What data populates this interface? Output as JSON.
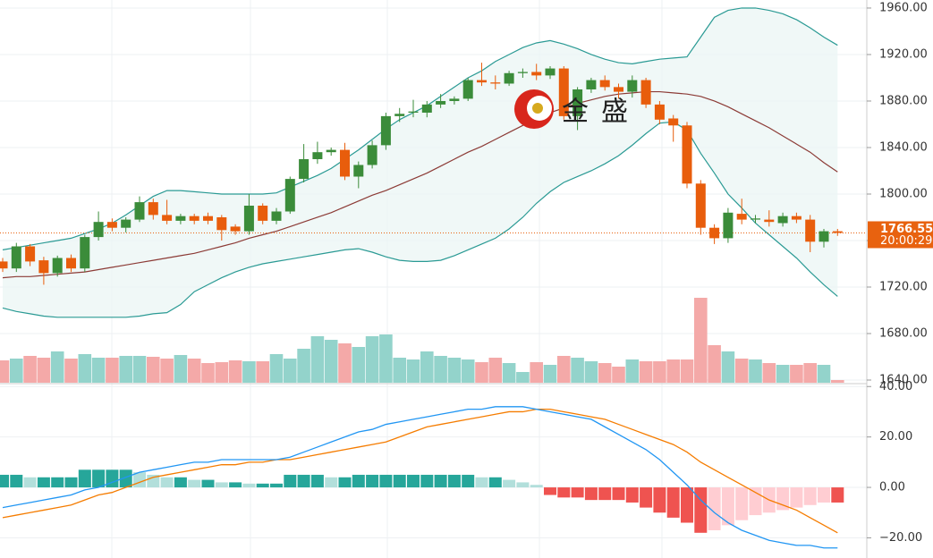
{
  "watermark": [
    "金",
    "盛"
  ],
  "chart_data": [
    {
      "type": "candlestick",
      "ylim": [
        1637.7,
        1966.9
      ],
      "yticks": [
        {
          "value": 1960,
          "label": "1960.00"
        },
        {
          "value": 1920,
          "label": "1920.00"
        },
        {
          "value": 1880,
          "label": "1880.00"
        },
        {
          "value": 1840,
          "label": "1840.00"
        },
        {
          "value": 1800,
          "label": "1800.00"
        },
        {
          "value": 1760,
          "label": "1760.00"
        },
        {
          "value": 1720,
          "label": "1720.00"
        },
        {
          "value": 1680,
          "label": "1680.00"
        },
        {
          "value": 1640,
          "label": "1640.00"
        }
      ],
      "colors": {
        "up": "#3b8c3a",
        "down": "#e85d0c",
        "volume_up": "#93d3cb",
        "volume_down": "#f4a9a8",
        "band": "#2a9a94",
        "middle": "#8c3b36",
        "last": "#e8620f"
      },
      "open": [
        1742,
        1736,
        1755,
        1743,
        1732,
        1745,
        1736,
        1763,
        1776,
        1771,
        1778,
        1793,
        1782,
        1777,
        1781,
        1781,
        1780,
        1772,
        1768,
        1790,
        1777,
        1785,
        1813,
        1830,
        1836,
        1838,
        1815,
        1825,
        1842,
        1867,
        1870,
        1870,
        1877,
        1880,
        1882,
        1898,
        1896,
        1895,
        1904,
        1905,
        1902,
        1908,
        1867,
        1890,
        1898,
        1892,
        1888,
        1898,
        1877,
        1865,
        1859,
        1809,
        1771,
        1762,
        1783,
        1778,
        1778,
        1775,
        1781,
        1778,
        1759,
        1768
      ],
      "high": [
        1745,
        1758,
        1757,
        1746,
        1747,
        1748,
        1765,
        1785,
        1779,
        1780,
        1798,
        1796,
        1795,
        1783,
        1783,
        1784,
        1782,
        1774,
        1800,
        1792,
        1788,
        1815,
        1843,
        1845,
        1840,
        1844,
        1828,
        1846,
        1870,
        1874,
        1881,
        1880,
        1886,
        1884,
        1900,
        1913,
        1902,
        1906,
        1908,
        1912,
        1910,
        1910,
        1892,
        1900,
        1902,
        1895,
        1902,
        1900,
        1880,
        1868,
        1862,
        1812,
        1774,
        1788,
        1796,
        1782,
        1786,
        1784,
        1784,
        1782,
        1770,
        1770
      ],
      "low": [
        1733,
        1733,
        1738,
        1722,
        1729,
        1733,
        1733,
        1760,
        1768,
        1767,
        1776,
        1778,
        1774,
        1774,
        1774,
        1774,
        1760,
        1765,
        1765,
        1774,
        1774,
        1783,
        1810,
        1826,
        1833,
        1812,
        1805,
        1822,
        1838,
        1862,
        1866,
        1866,
        1874,
        1877,
        1880,
        1893,
        1890,
        1893,
        1900,
        1898,
        1899,
        1864,
        1855,
        1887,
        1889,
        1882,
        1883,
        1874,
        1860,
        1845,
        1805,
        1765,
        1757,
        1758,
        1774,
        1775,
        1772,
        1772,
        1775,
        1750,
        1754,
        1764
      ],
      "close": [
        1736,
        1755,
        1742,
        1732,
        1745,
        1736,
        1763,
        1776,
        1771,
        1778,
        1793,
        1782,
        1777,
        1781,
        1777,
        1777,
        1769,
        1768,
        1790,
        1777,
        1785,
        1813,
        1830,
        1836,
        1838,
        1815,
        1825,
        1842,
        1867,
        1869,
        1871,
        1877,
        1880,
        1882,
        1898,
        1896,
        1895,
        1904,
        1905,
        1902,
        1908,
        1867,
        1890,
        1898,
        1892,
        1888,
        1898,
        1877,
        1864,
        1859,
        1809,
        1771,
        1762,
        1784,
        1778,
        1779,
        1776,
        1781,
        1778,
        1759,
        1768,
        1766.55
      ],
      "volume": [
        25,
        27,
        30,
        28,
        35,
        27,
        32,
        28,
        28,
        30,
        30,
        29,
        27,
        31,
        27,
        22,
        23,
        25,
        24,
        24,
        32,
        27,
        38,
        52,
        48,
        44,
        40,
        52,
        54,
        28,
        26,
        35,
        30,
        28,
        26,
        23,
        28,
        22,
        12,
        23,
        20,
        30,
        28,
        24,
        22,
        18,
        26,
        24,
        24,
        26,
        26,
        95,
        42,
        35,
        27,
        26,
        22,
        20,
        20,
        22,
        20,
        3
      ],
      "bollinger": {
        "upper": [
          1752,
          1754,
          1756,
          1758,
          1760,
          1762,
          1766,
          1770,
          1775,
          1782,
          1790,
          1798,
          1803,
          1803,
          1802,
          1801,
          1800,
          1800,
          1800,
          1800,
          1801,
          1806,
          1811,
          1816,
          1822,
          1830,
          1838,
          1847,
          1856,
          1864,
          1870,
          1876,
          1884,
          1892,
          1900,
          1906,
          1914,
          1920,
          1926,
          1930,
          1932,
          1929,
          1925,
          1920,
          1916,
          1913,
          1912,
          1914,
          1916,
          1917,
          1918,
          1935,
          1952,
          1958,
          1960,
          1960,
          1958,
          1955,
          1950,
          1943,
          1935,
          1928
        ],
        "middle": [
          1728,
          1729,
          1729,
          1730,
          1731,
          1732,
          1733,
          1735,
          1737,
          1739,
          1741,
          1743,
          1745,
          1747,
          1749,
          1752,
          1755,
          1758,
          1762,
          1765,
          1768,
          1772,
          1776,
          1780,
          1784,
          1789,
          1794,
          1799,
          1803,
          1808,
          1813,
          1818,
          1824,
          1830,
          1836,
          1841,
          1847,
          1853,
          1859,
          1865,
          1870,
          1874,
          1878,
          1881,
          1884,
          1886,
          1887,
          1888,
          1888,
          1887,
          1886,
          1884,
          1880,
          1875,
          1869,
          1863,
          1857,
          1850,
          1843,
          1836,
          1827,
          1819
        ],
        "lower": [
          1702,
          1699,
          1697,
          1695,
          1694,
          1694,
          1694,
          1694,
          1694,
          1694,
          1695,
          1697,
          1698,
          1705,
          1716,
          1722,
          1728,
          1733,
          1737,
          1740,
          1742,
          1744,
          1746,
          1748,
          1750,
          1752,
          1753,
          1750,
          1746,
          1743,
          1742,
          1742,
          1743,
          1747,
          1752,
          1757,
          1762,
          1770,
          1780,
          1792,
          1802,
          1810,
          1815,
          1820,
          1826,
          1833,
          1842,
          1852,
          1861,
          1862,
          1855,
          1835,
          1818,
          1800,
          1788,
          1775,
          1765,
          1755,
          1745,
          1733,
          1722,
          1712
        ]
      },
      "last_price": 1766.55,
      "countdown": "20:00:29"
    },
    {
      "type": "macd",
      "ylim": [
        -28,
        40.8
      ],
      "yticks": [
        {
          "value": 40,
          "label": "40.00"
        },
        {
          "value": 20,
          "label": "20.00"
        },
        {
          "value": 0,
          "label": "0.00"
        },
        {
          "value": -20,
          "label": "−20.00"
        }
      ],
      "colors": {
        "dif": "#2196f3",
        "dea": "#f57c00",
        "rise_up": "#26a69a",
        "fall_up": "#b2dfdb",
        "fall_down": "#ef5350",
        "rise_down": "#ffcdd2"
      },
      "dif": [
        -8,
        -7,
        -6,
        -5,
        -4,
        -3,
        -1,
        0,
        2,
        4,
        6,
        7,
        8,
        9,
        10,
        10,
        11,
        11,
        11,
        11,
        11,
        12,
        14,
        16,
        18,
        20,
        22,
        23,
        25,
        26,
        27,
        28,
        29,
        30,
        31,
        31,
        32,
        32,
        32,
        31,
        30,
        29,
        28,
        27,
        24,
        21,
        18,
        15,
        11,
        6,
        1,
        -5,
        -10,
        -14,
        -17,
        -19,
        -21,
        -22,
        -23,
        -23,
        -24,
        -24
      ],
      "dea": [
        -12,
        -11,
        -10,
        -9,
        -8,
        -7,
        -5,
        -3,
        -2,
        0,
        2,
        4,
        5,
        6,
        7,
        8,
        9,
        9,
        10,
        10,
        11,
        11,
        12,
        13,
        14,
        15,
        16,
        17,
        18,
        20,
        22,
        24,
        25,
        26,
        27,
        28,
        29,
        30,
        30,
        31,
        31,
        30,
        29,
        28,
        27,
        25,
        23,
        21,
        19,
        17,
        14,
        10,
        7,
        4,
        1,
        -2,
        -5,
        -7,
        -9,
        -12,
        -15,
        -18
      ],
      "histogram": [
        5,
        5,
        4,
        4,
        4,
        4,
        7,
        7,
        7,
        7,
        6,
        5,
        4,
        4,
        3,
        3,
        2,
        2,
        1.5,
        1.5,
        1.5,
        5,
        5,
        5,
        4,
        4,
        5,
        5,
        5,
        5,
        5,
        5,
        5,
        5,
        5,
        4,
        4,
        3,
        2,
        1,
        -3,
        -4,
        -4,
        -5,
        -5,
        -5,
        -6,
        -8,
        -10,
        -12,
        -14,
        -18,
        -17,
        -15,
        -13,
        -11,
        -10,
        -9,
        -8,
        -7,
        -6,
        -6
      ]
    }
  ]
}
